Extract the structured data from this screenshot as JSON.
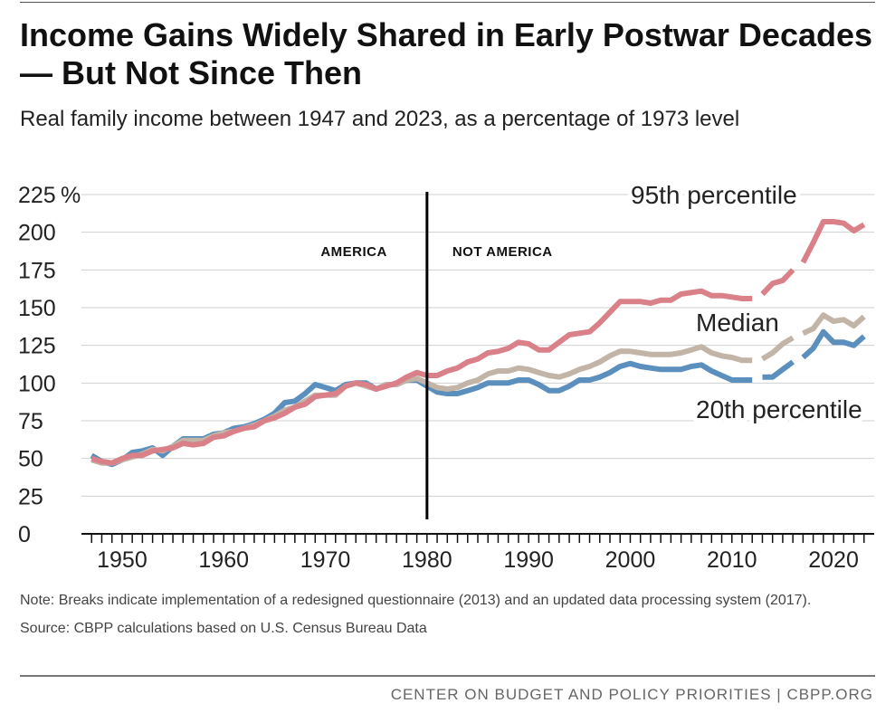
{
  "header": {
    "title": "Income Gains Widely Shared in Early Postwar Decades — But Not Since Then",
    "subtitle": "Real family income between 1947 and 2023, as a percentage of 1973 level"
  },
  "chart_data": {
    "type": "line",
    "title": "Income Gains Widely Shared in Early Postwar Decades — But Not Since Then",
    "subtitle": "Real family income between 1947 and 2023, as a percentage of 1973 level",
    "xlabel": "",
    "ylabel": "",
    "xlim": [
      1946,
      2024
    ],
    "ylim": [
      0,
      225
    ],
    "y_unit_label": "%",
    "yticks": [
      0,
      25,
      50,
      75,
      100,
      125,
      150,
      175,
      200,
      225
    ],
    "xticks": [
      1950,
      1960,
      1970,
      1980,
      1990,
      2000,
      2010,
      2020
    ],
    "grid": true,
    "breaks": [
      2013,
      2017
    ],
    "divider": {
      "year": 1980,
      "left_label": "AMERICA",
      "right_label": "NOT AMERICA"
    },
    "x": [
      1947,
      1948,
      1949,
      1950,
      1951,
      1952,
      1953,
      1954,
      1955,
      1956,
      1957,
      1958,
      1959,
      1960,
      1961,
      1962,
      1963,
      1964,
      1965,
      1966,
      1967,
      1968,
      1969,
      1970,
      1971,
      1972,
      1973,
      1974,
      1975,
      1976,
      1977,
      1978,
      1979,
      1980,
      1981,
      1982,
      1983,
      1984,
      1985,
      1986,
      1987,
      1988,
      1989,
      1990,
      1991,
      1992,
      1993,
      1994,
      1995,
      1996,
      1997,
      1998,
      1999,
      2000,
      2001,
      2002,
      2003,
      2004,
      2005,
      2006,
      2007,
      2008,
      2009,
      2010,
      2011,
      2012,
      2013,
      2014,
      2015,
      2016,
      2017,
      2018,
      2019,
      2020,
      2021,
      2022,
      2023
    ],
    "series": [
      {
        "name": "20th percentile",
        "label": "20th percentile",
        "color": "#5b8fbe",
        "values": [
          52,
          48,
          46,
          49,
          54,
          55,
          57,
          52,
          58,
          63,
          63,
          63,
          66,
          67,
          70,
          71,
          73,
          76,
          80,
          87,
          88,
          93,
          99,
          97,
          95,
          99,
          100,
          100,
          96,
          99,
          99,
          102,
          102,
          98,
          94,
          93,
          93,
          95,
          97,
          100,
          100,
          100,
          102,
          102,
          99,
          95,
          95,
          98,
          102,
          102,
          104,
          107,
          111,
          113,
          111,
          110,
          109,
          109,
          109,
          111,
          112,
          108,
          105,
          102,
          102,
          102,
          104,
          104,
          109,
          114,
          117,
          123,
          134,
          127,
          127,
          125,
          131
        ]
      },
      {
        "name": "Median",
        "label": "Median",
        "color": "#c2b4a6",
        "values": [
          49,
          47,
          47,
          49,
          51,
          53,
          56,
          55,
          58,
          62,
          62,
          62,
          65,
          67,
          68,
          70,
          72,
          75,
          78,
          82,
          84,
          88,
          92,
          92,
          92,
          98,
          100,
          98,
          96,
          99,
          99,
          102,
          103,
          100,
          97,
          96,
          97,
          100,
          102,
          106,
          108,
          108,
          110,
          109,
          107,
          105,
          104,
          106,
          109,
          111,
          114,
          118,
          121,
          121,
          120,
          119,
          119,
          119,
          120,
          122,
          124,
          120,
          118,
          117,
          115,
          115,
          116,
          120,
          126,
          130,
          133,
          136,
          145,
          141,
          142,
          138,
          144
        ]
      },
      {
        "name": "95th percentile",
        "label": "95th percentile",
        "color": "#d98088",
        "values": [
          50,
          48,
          47,
          50,
          52,
          52,
          55,
          56,
          57,
          60,
          59,
          60,
          64,
          65,
          68,
          70,
          71,
          75,
          77,
          80,
          84,
          86,
          91,
          92,
          93,
          98,
          100,
          99,
          96,
          98,
          100,
          104,
          107,
          105,
          105,
          108,
          110,
          114,
          116,
          120,
          121,
          123,
          127,
          126,
          122,
          122,
          127,
          132,
          133,
          134,
          140,
          147,
          154,
          154,
          154,
          153,
          155,
          155,
          159,
          160,
          161,
          158,
          158,
          157,
          156,
          156,
          159,
          166,
          168,
          175,
          180,
          193,
          207,
          207,
          206,
          201,
          205
        ]
      }
    ]
  },
  "notes": {
    "note": "Note: Breaks indicate implementation of a redesigned questionnaire (2013) and an updated data processing system (2017).",
    "source": "Source: CBPP calculations based on U.S. Census Bureau Data"
  },
  "footer": {
    "text": "CENTER ON BUDGET AND POLICY PRIORITIES | CBPP.ORG"
  }
}
